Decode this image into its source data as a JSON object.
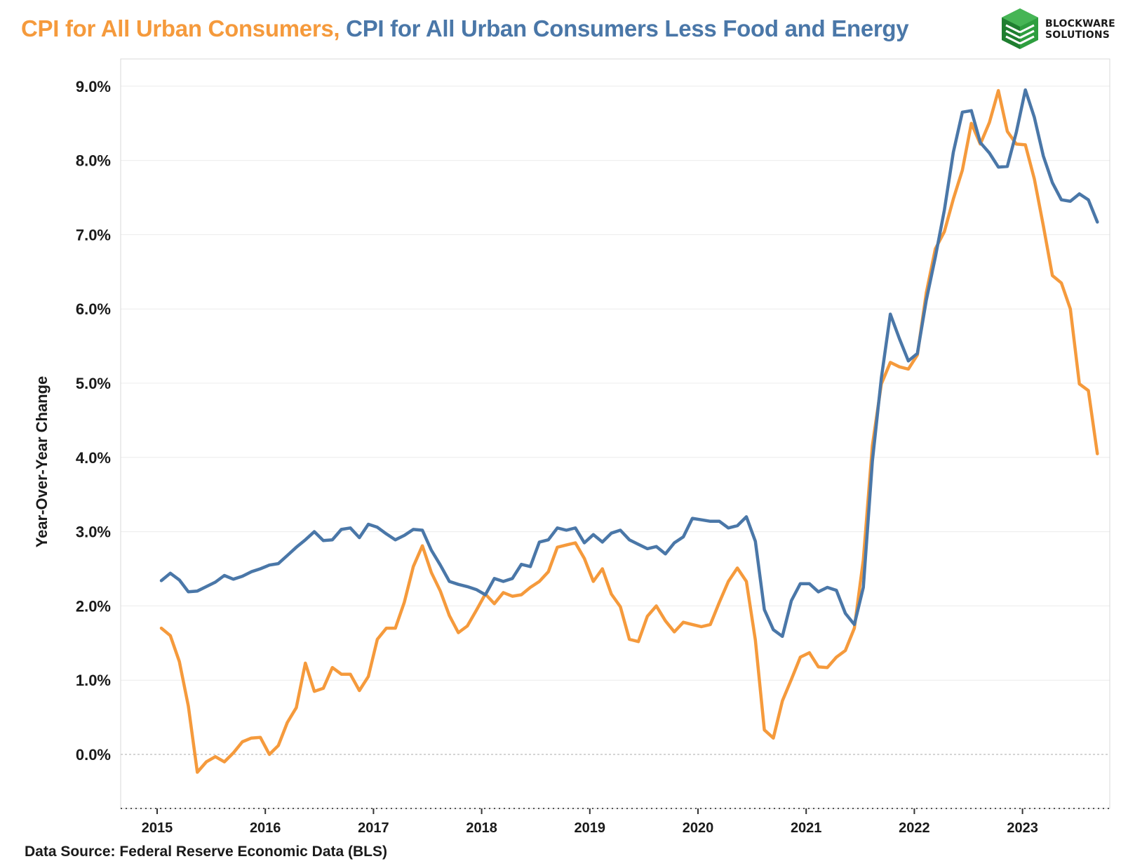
{
  "header": {
    "title_part1": "CPI for All Urban Consumers,",
    "title_part2": "CPI for All Urban Consumers Less Food and Energy"
  },
  "logo": {
    "line1": "BLOCKWARE",
    "line2": "SOLUTIONS",
    "icon": "blockware-cube-logo",
    "color": "#2E9E3F"
  },
  "footer": {
    "source": "Data Source: Federal Reserve Economic Data (BLS)"
  },
  "chart_data": {
    "type": "line",
    "title": "CPI for All Urban Consumers, CPI for All Urban Consumers Less Food and Energy",
    "xlabel": "",
    "ylabel": "Year-Over-Year Change",
    "ylim": [
      -0.7,
      9.8
    ],
    "yticks": [
      0.0,
      1.0,
      2.0,
      3.0,
      4.0,
      5.0,
      6.0,
      7.0,
      8.0,
      9.0
    ],
    "ytick_labels": [
      "0.0%",
      "1.0%",
      "2.0%",
      "3.0%",
      "4.0%",
      "5.0%",
      "6.0%",
      "7.0%",
      "8.0%",
      "9.0%"
    ],
    "x_tick_labels": [
      "2015",
      "2016",
      "2017",
      "2018",
      "2019",
      "2020",
      "2021",
      "2022",
      "2023"
    ],
    "x_start": "2015-01",
    "grid": true,
    "legend": "none",
    "series": [
      {
        "name": "CPI for All Urban Consumers",
        "color": "#F59A3C",
        "values": [
          1.7,
          1.6,
          1.25,
          0.65,
          -0.24,
          -0.1,
          -0.03,
          -0.1,
          0.02,
          0.17,
          0.22,
          0.23,
          0.0,
          0.12,
          0.43,
          0.63,
          1.23,
          0.85,
          0.89,
          1.17,
          1.08,
          1.08,
          0.86,
          1.05,
          1.55,
          1.7,
          1.7,
          2.05,
          2.53,
          2.81,
          2.45,
          2.2,
          1.87,
          1.64,
          1.73,
          1.94,
          2.16,
          2.03,
          2.18,
          2.13,
          2.15,
          2.25,
          2.33,
          2.46,
          2.79,
          2.82,
          2.85,
          2.64,
          2.33,
          2.5,
          2.16,
          1.99,
          1.55,
          1.52,
          1.86,
          2.0,
          1.8,
          1.65,
          1.78,
          1.75,
          1.72,
          1.75,
          2.05,
          2.33,
          2.51,
          2.33,
          1.54,
          0.33,
          0.22,
          0.72,
          1.01,
          1.31,
          1.37,
          1.18,
          1.17,
          1.31,
          1.4,
          1.7,
          2.62,
          4.16,
          4.99,
          5.28,
          5.22,
          5.19,
          5.38,
          6.22,
          6.81,
          7.04,
          7.48,
          7.87,
          8.5,
          8.22,
          8.51,
          8.94,
          8.39,
          8.22,
          8.21,
          7.75,
          7.12,
          6.45,
          6.35,
          6.0,
          4.99,
          4.9,
          4.05
        ]
      },
      {
        "name": "CPI for All Urban Consumers Less Food and Energy",
        "color": "#4A77A8",
        "values": [
          2.34,
          2.44,
          2.35,
          2.19,
          2.2,
          2.26,
          2.32,
          2.41,
          2.36,
          2.4,
          2.46,
          2.5,
          2.55,
          2.57,
          2.68,
          2.79,
          2.89,
          3.0,
          2.88,
          2.89,
          3.03,
          3.05,
          2.92,
          3.1,
          3.06,
          2.97,
          2.89,
          2.95,
          3.03,
          3.02,
          2.75,
          2.55,
          2.33,
          2.29,
          2.26,
          2.22,
          2.15,
          2.37,
          2.33,
          2.37,
          2.56,
          2.53,
          2.86,
          2.89,
          3.05,
          3.02,
          3.05,
          2.85,
          2.96,
          2.86,
          2.98,
          3.02,
          2.89,
          2.83,
          2.77,
          2.8,
          2.7,
          2.85,
          2.93,
          3.18,
          3.16,
          3.14,
          3.14,
          3.05,
          3.08,
          3.2,
          2.87,
          1.95,
          1.68,
          1.59,
          2.07,
          2.3,
          2.3,
          2.19,
          2.25,
          2.21,
          1.9,
          1.75,
          2.25,
          3.95,
          5.07,
          5.93,
          5.6,
          5.3,
          5.4,
          6.12,
          6.7,
          7.33,
          8.11,
          8.65,
          8.67,
          8.24,
          8.1,
          7.91,
          7.92,
          8.38,
          8.95,
          8.58,
          8.06,
          7.7,
          7.47,
          7.45,
          7.55,
          7.47,
          7.17
        ]
      }
    ]
  }
}
